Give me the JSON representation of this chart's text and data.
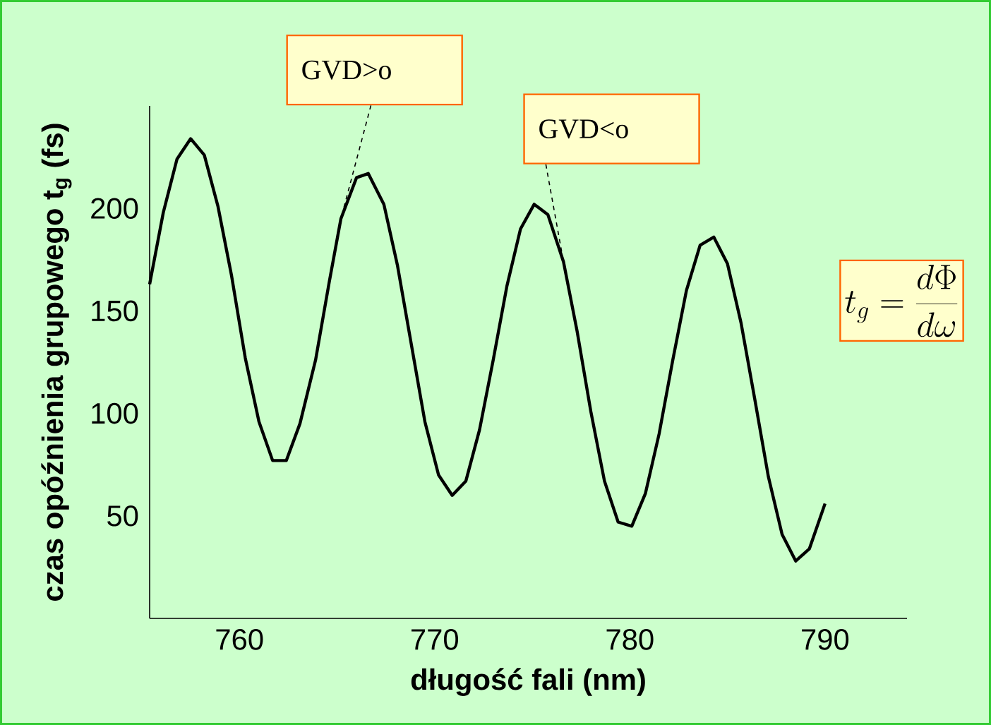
{
  "chart_data": {
    "type": "line",
    "xlabel": "długość fali (nm)",
    "ylabel": "czas opóźnienia  grupowego t$_{g}$ (fs)",
    "x": [
      755.4,
      756.1,
      756.8,
      757.5,
      758.2,
      758.9,
      759.6,
      760.3,
      761.0,
      761.7,
      762.4,
      763.1,
      763.9,
      764.6,
      765.2,
      766.0,
      766.6,
      767.4,
      768.1,
      768.8,
      769.5,
      770.2,
      770.9,
      771.6,
      772.3,
      773.0,
      773.7,
      774.4,
      775.1,
      775.8,
      776.6,
      777.3,
      778.0,
      778.7,
      779.4,
      780.1,
      780.8,
      781.5,
      782.2,
      782.9,
      783.6,
      784.3,
      785.0,
      785.7,
      786.4,
      787.1,
      787.8,
      788.5,
      789.2,
      790.0
    ],
    "values": [
      163,
      198,
      224,
      234,
      226,
      201,
      167,
      127,
      96,
      77,
      77,
      95,
      126,
      164,
      195,
      215,
      217,
      202,
      172,
      134,
      96,
      70,
      60,
      67,
      92,
      126,
      162,
      190,
      202,
      197,
      174,
      140,
      101,
      67,
      47,
      45,
      61,
      90,
      126,
      160,
      182,
      186,
      173,
      144,
      107,
      69,
      41,
      28,
      34,
      56
    ],
    "color": "#000000",
    "xlim": [
      755.4,
      794.2
    ],
    "ylim": [
      0,
      250
    ],
    "xticks": [
      760,
      770,
      780,
      790
    ],
    "yticks": [
      50,
      100,
      150,
      200
    ],
    "grid": false,
    "marker": "none",
    "line_style": "solid",
    "annotations": [
      {
        "text": "GVD>o",
        "x": 765.2,
        "y": 195
      },
      {
        "text": "GVD<o",
        "x": 776.6,
        "y": 174
      },
      "t_{g} = \\frac{d\\Phi}{d\\omega}"
    ]
  }
}
